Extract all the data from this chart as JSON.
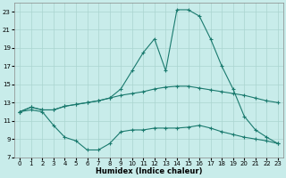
{
  "xlabel": "Humidex (Indice chaleur)",
  "xlim": [
    -0.5,
    23.5
  ],
  "ylim": [
    7,
    24
  ],
  "yticks": [
    7,
    9,
    11,
    13,
    15,
    17,
    19,
    21,
    23
  ],
  "xticks": [
    0,
    1,
    2,
    3,
    4,
    5,
    6,
    7,
    8,
    9,
    10,
    11,
    12,
    13,
    14,
    15,
    16,
    17,
    18,
    19,
    20,
    21,
    22,
    23
  ],
  "background_color": "#c8ecea",
  "grid_color": "#aad4d0",
  "line_color": "#1a7a6e",
  "line1_x": [
    0,
    1,
    2,
    3,
    4,
    5,
    6,
    7,
    8,
    9,
    10,
    11,
    12,
    13,
    14,
    15,
    16,
    17,
    18,
    19,
    20,
    21,
    22,
    23
  ],
  "line1_y": [
    12.0,
    12.5,
    12.2,
    12.2,
    12.6,
    12.8,
    13.0,
    13.2,
    13.5,
    13.8,
    14.0,
    14.2,
    14.5,
    14.7,
    14.8,
    14.8,
    14.6,
    14.4,
    14.2,
    14.0,
    13.8,
    13.5,
    13.2,
    13.0
  ],
  "line2_x": [
    0,
    1,
    2,
    3,
    4,
    5,
    6,
    7,
    8,
    9,
    10,
    11,
    12,
    13,
    14,
    15,
    16,
    17,
    18,
    19,
    20,
    21,
    22,
    23
  ],
  "line2_y": [
    12.0,
    12.5,
    12.2,
    12.2,
    12.6,
    12.8,
    13.0,
    13.2,
    13.5,
    14.5,
    16.5,
    18.5,
    20.0,
    16.5,
    23.2,
    23.2,
    22.5,
    20.0,
    17.0,
    14.5,
    11.5,
    10.0,
    9.2,
    8.5
  ],
  "line3_x": [
    0,
    1,
    2,
    3,
    4,
    5,
    6,
    7,
    8,
    9,
    10,
    11,
    12,
    13,
    14,
    15,
    16,
    17,
    18,
    19,
    20,
    21,
    22,
    23
  ],
  "line3_y": [
    12.0,
    12.2,
    12.0,
    10.5,
    9.2,
    8.8,
    7.8,
    7.8,
    8.5,
    9.8,
    10.0,
    10.0,
    10.2,
    10.2,
    10.2,
    10.3,
    10.5,
    10.2,
    9.8,
    9.5,
    9.2,
    9.0,
    8.8,
    8.5
  ]
}
